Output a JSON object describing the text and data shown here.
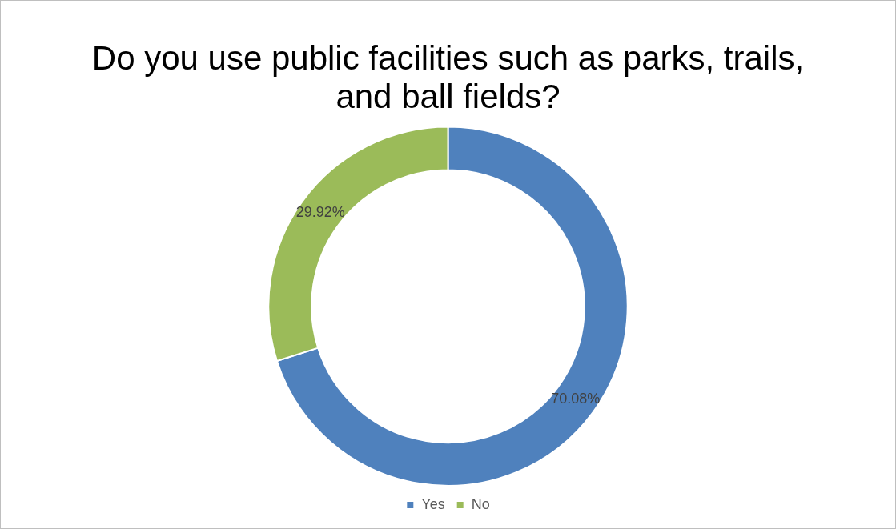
{
  "chart_data": {
    "type": "donut",
    "title": "Do you use public facilities such as parks, trails, and ball fields?",
    "categories": [
      "Yes",
      "No"
    ],
    "values": [
      70.08,
      29.92
    ],
    "colors": [
      "#4f81bd",
      "#9bbb59"
    ],
    "value_labels": [
      "70.08%",
      "29.92%"
    ],
    "legend": "bottom"
  }
}
